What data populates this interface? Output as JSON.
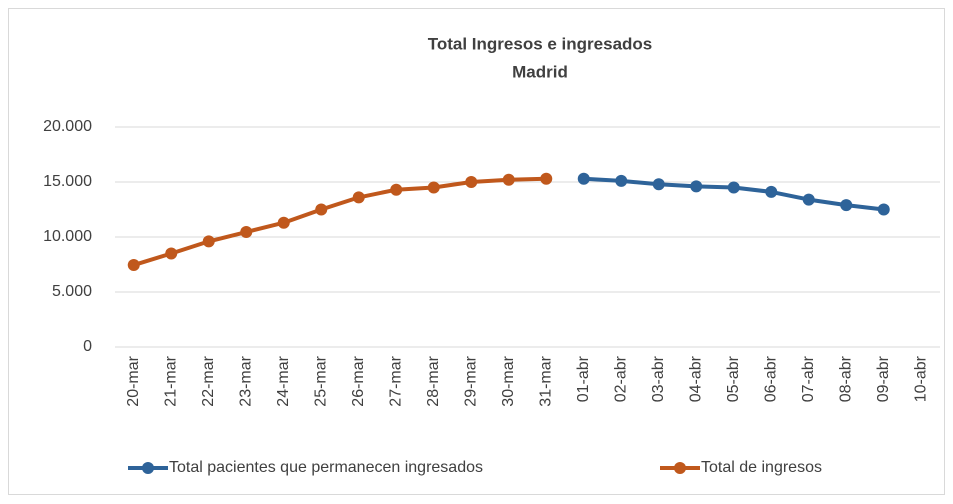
{
  "chart_data": {
    "type": "line",
    "title": "Total Ingresos e ingresados",
    "subtitle": "Madrid",
    "categories": [
      "20-mar",
      "21-mar",
      "22-mar",
      "23-mar",
      "24-mar",
      "25-mar",
      "26-mar",
      "27-mar",
      "28-mar",
      "29-mar",
      "30-mar",
      "31-mar",
      "01-abr",
      "02-abr",
      "03-abr",
      "04-abr",
      "05-abr",
      "06-abr",
      "07-abr",
      "08-abr",
      "09-abr",
      "10-abr"
    ],
    "series": [
      {
        "name": "Total pacientes que permanecen ingresados",
        "color": "#2e6399",
        "values": [
          null,
          null,
          null,
          null,
          null,
          null,
          null,
          null,
          null,
          null,
          null,
          null,
          15300,
          15100,
          14800,
          14600,
          14500,
          14100,
          13400,
          12900,
          12500,
          null
        ]
      },
      {
        "name": "Total de ingresos",
        "color": "#c0581c",
        "values": [
          7450,
          8500,
          9600,
          10450,
          11300,
          12500,
          13600,
          14300,
          14500,
          15000,
          15200,
          15300,
          null,
          null,
          null,
          null,
          null,
          null,
          null,
          null,
          null,
          null
        ]
      }
    ],
    "ylim": [
      0,
      20000
    ],
    "yticks": [
      0,
      {
        "value": 5000,
        "label": "5.000"
      },
      {
        "value": 10000,
        "label": "10.000"
      },
      {
        "value": 15000,
        "label": "15.000"
      },
      {
        "value": 20000,
        "label": "20.000"
      }
    ],
    "grid": true,
    "legend": "bottom"
  }
}
